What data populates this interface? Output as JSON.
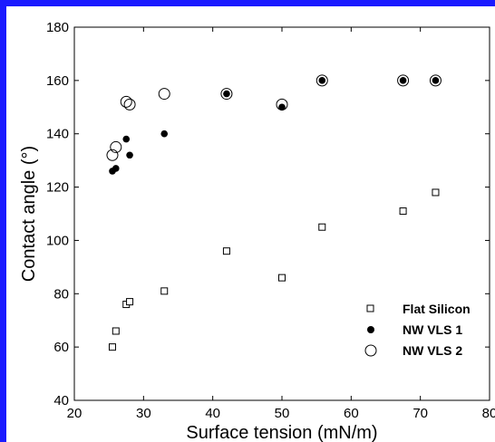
{
  "colors": {
    "frame": "#1a1aff",
    "ink": "#000000",
    "background": "#ffffff"
  },
  "chart_data": {
    "type": "scatter",
    "xlabel": "Surface tension (mN/m)",
    "ylabel": "Contact angle (°)",
    "xlim": [
      20,
      80
    ],
    "ylim": [
      40,
      180
    ],
    "x_ticks": [
      "20",
      "30",
      "40",
      "50",
      "60",
      "70",
      "80"
    ],
    "y_ticks": [
      "40",
      "60",
      "80",
      "100",
      "120",
      "140",
      "160",
      "180"
    ],
    "grid": false,
    "legend_position": "bottom-right",
    "series": [
      {
        "name": "Flat Silicon",
        "marker": "open-square",
        "x": [
          25.5,
          26.0,
          27.5,
          28.0,
          33.0,
          42.0,
          50.0,
          55.8,
          67.5,
          72.2
        ],
        "y": [
          60,
          66,
          76,
          77,
          81,
          96,
          86,
          105,
          111,
          118
        ]
      },
      {
        "name": "NW VLS 1",
        "marker": "filled-circle",
        "x": [
          25.5,
          26.0,
          27.5,
          28.0,
          33.0,
          42.0,
          50.0,
          55.8,
          67.5,
          72.2
        ],
        "y": [
          126,
          127,
          138,
          132,
          140,
          155,
          150,
          160,
          160,
          160
        ]
      },
      {
        "name": "NW VLS 2",
        "marker": "open-circle",
        "x": [
          25.5,
          26.0,
          27.5,
          28.0,
          33.0,
          42.0,
          50.0,
          55.8,
          67.5,
          72.2
        ],
        "y": [
          132,
          135,
          152,
          151,
          155,
          155,
          151,
          160,
          160,
          160
        ]
      }
    ]
  }
}
